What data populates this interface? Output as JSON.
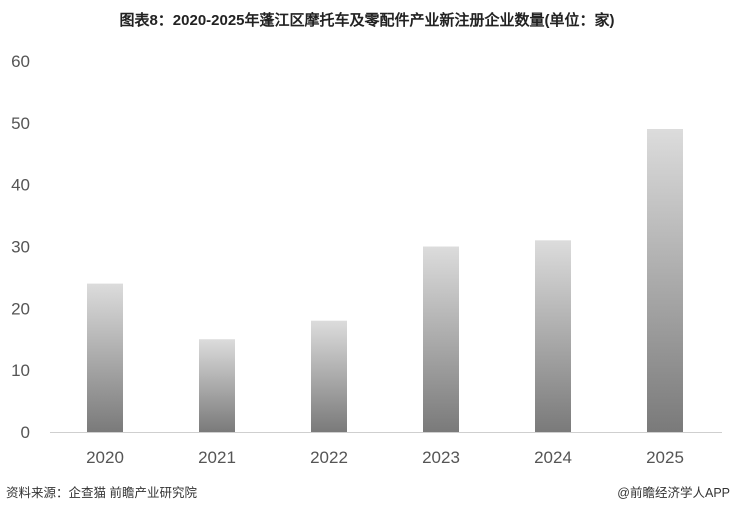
{
  "chart_data": {
    "type": "bar",
    "title": "图表8：2020-2025年蓬江区摩托车及零配件产业新注册企业数量(单位：家)",
    "categories": [
      "2020",
      "2021",
      "2022",
      "2023",
      "2024",
      "2025"
    ],
    "values": [
      24,
      15,
      18,
      30,
      31,
      49
    ],
    "ylim": [
      0,
      60
    ],
    "yticks": [
      0,
      10,
      20,
      30,
      40,
      50,
      60
    ],
    "xlabel": "",
    "ylabel": "",
    "grid": false,
    "bar_gradient": [
      "#dcdcdc",
      "#7a7a7a"
    ]
  },
  "footer": {
    "source": "资料来源：企查猫 前瞻产业研究院",
    "brand": "@前瞻经济学人APP"
  }
}
